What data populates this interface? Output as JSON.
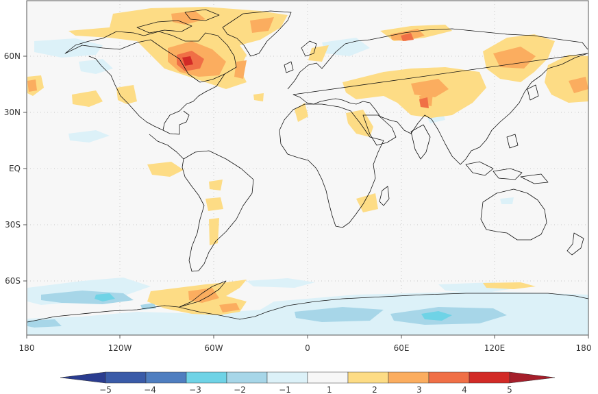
{
  "map": {
    "lat_labels": [
      "60N",
      "30N",
      "EQ",
      "30S",
      "60S"
    ],
    "lon_labels": [
      "180",
      "120W",
      "60W",
      "0",
      "60E",
      "120E",
      "180"
    ]
  },
  "colorbar": {
    "tick_labels": [
      "−5",
      "−4",
      "−3",
      "−2",
      "−1",
      "1",
      "2",
      "3",
      "4",
      "5"
    ],
    "colors": [
      "#3a5ba8",
      "#4f7ec0",
      "#6fd3e6",
      "#a7d6e8",
      "#dcf1f8",
      "#f7f7f7",
      "#fddc85",
      "#fbad5f",
      "#f06f46",
      "#d22a26"
    ],
    "end_low": "#2a3c8f",
    "end_high": "#a51e2a"
  },
  "colors": {
    "background": "#f7f7f7",
    "coast": "#111111",
    "grid": "#bbbbbb"
  }
}
